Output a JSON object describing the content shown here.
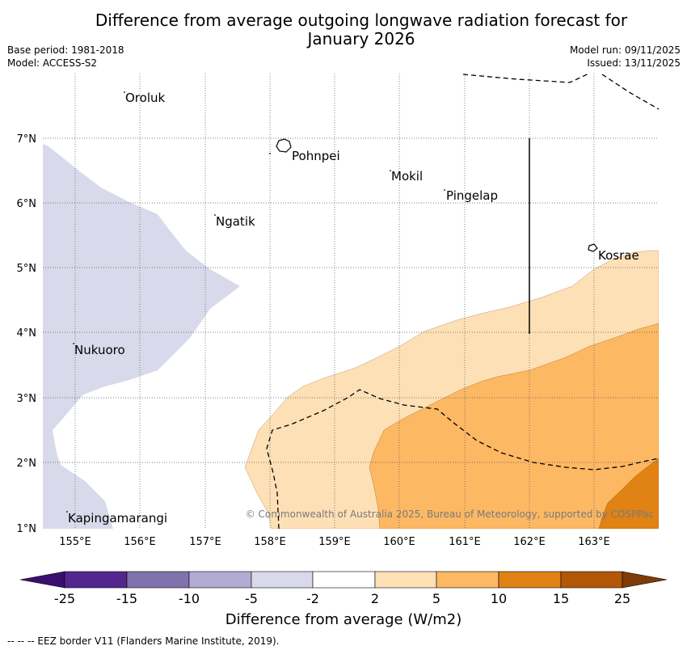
{
  "title": {
    "line1": "Difference from average outgoing longwave radiation forecast for",
    "line2": "January 2026"
  },
  "meta": {
    "base_period": "Base period: 1981-2018",
    "model": "Model: ACCESS-S2",
    "model_run": "Model run: 09/11/2025",
    "issued": "Issued: 13/11/2025"
  },
  "map": {
    "places": [
      "Oroluk",
      "Pohnpei",
      "Mokil",
      "Pingelap",
      "Ngatik",
      "Kosrae",
      "Nukuoro",
      "Kapingamarangi"
    ],
    "lon_labels": [
      "155°E",
      "156°E",
      "157°E",
      "158°E",
      "159°E",
      "160°E",
      "161°E",
      "162°E",
      "163°E"
    ],
    "lat_labels": [
      "7°N",
      "6°N",
      "5°N",
      "4°N",
      "3°N",
      "2°N",
      "1°N"
    ],
    "copyright": "© Commonwealth of Australia 2025, Bureau of Meteorology, supported by COSPPac"
  },
  "colorbar": {
    "title": "Difference from average (W/m2)",
    "ticks": [
      "-25",
      "-15",
      "-10",
      "-5",
      "-2",
      "2",
      "5",
      "10",
      "15",
      "25"
    ],
    "colors": [
      "#3b0f6f",
      "#54278f",
      "#8073ac",
      "#b2abd2",
      "#d8daeb",
      "#ffffff",
      "#fee0b6",
      "#fdb863",
      "#e08214",
      "#b35806",
      "#7f3b08"
    ]
  },
  "footnote": "--  --  -- EEZ border V11 (Flanders Marine Institute, 2019)."
}
